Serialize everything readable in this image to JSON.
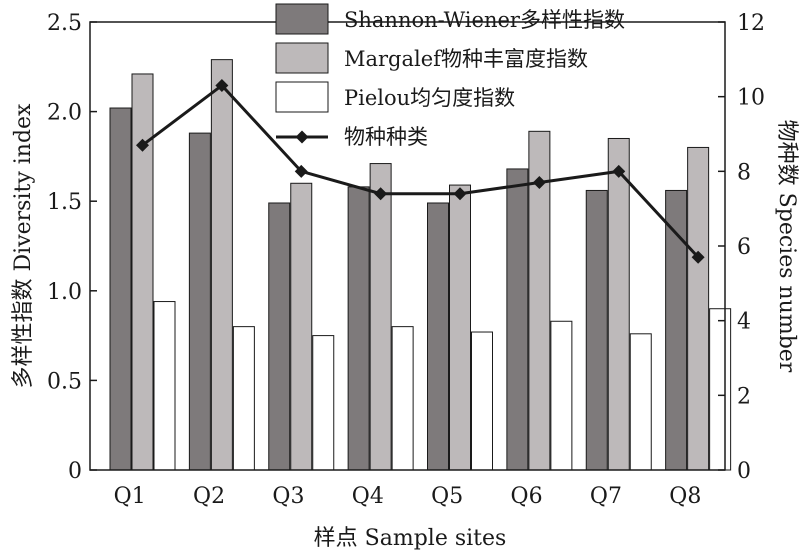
{
  "chart_data": {
    "type": "bar",
    "categories": [
      "Q1",
      "Q2",
      "Q3",
      "Q4",
      "Q5",
      "Q6",
      "Q7",
      "Q8"
    ],
    "series": [
      {
        "name": "Shannon-Wiener多样性指数",
        "kind": "bar",
        "axis": "left",
        "color": "#7e7a7b",
        "values": [
          2.02,
          1.88,
          1.49,
          1.58,
          1.49,
          1.68,
          1.56,
          1.56
        ]
      },
      {
        "name": "Margalef物种丰富度指数",
        "kind": "bar",
        "axis": "left",
        "color": "#bdb9ba",
        "values": [
          2.21,
          2.29,
          1.6,
          1.71,
          1.59,
          1.89,
          1.85,
          1.8
        ]
      },
      {
        "name": "Pielou均匀度指数",
        "kind": "bar",
        "axis": "left",
        "color": "#ffffff",
        "values": [
          0.94,
          0.8,
          0.75,
          0.8,
          0.77,
          0.83,
          0.76,
          0.9
        ]
      },
      {
        "name": "物种种类",
        "kind": "line",
        "axis": "right",
        "color": "#1a1a1a",
        "values": [
          8.7,
          10.3,
          8.0,
          7.4,
          7.4,
          7.7,
          8.0,
          5.7
        ]
      }
    ],
    "xlabel": "样点 Sample sites",
    "ylabel": "多样性指数 Diversity index",
    "y2label": "物种数  Species number",
    "ylim": [
      0,
      2.5
    ],
    "y2lim": [
      0,
      12
    ],
    "yticks": [
      "0",
      "0.5",
      "1.0",
      "1.5",
      "2.0",
      "2.5"
    ],
    "y2ticks": [
      "0",
      "2",
      "4",
      "6",
      "8",
      "10",
      "12"
    ],
    "grid": false,
    "legend_position": "top-center"
  }
}
